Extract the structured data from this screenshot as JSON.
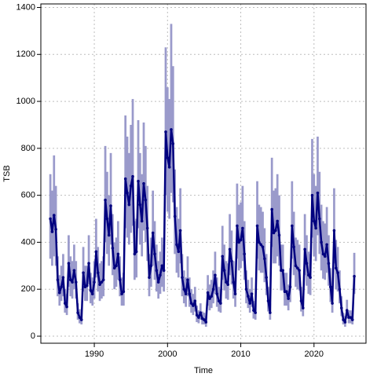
{
  "chart_data": {
    "type": "line",
    "xlabel": "Time",
    "ylabel": "TSB",
    "color": "#00007f",
    "band_color": "#9a9acb",
    "grid": true,
    "xlim": [
      1982.7,
      2027.1
    ],
    "ylim": [
      -30,
      1415
    ],
    "xticks": [
      1990,
      2000,
      2010,
      2020
    ],
    "yticks": [
      0,
      200,
      400,
      600,
      800,
      1000,
      1200,
      1400
    ],
    "x": [
      1984,
      1984.25,
      1984.5,
      1984.75,
      1985,
      1985.25,
      1985.5,
      1985.75,
      1986,
      1986.25,
      1986.5,
      1986.75,
      1987,
      1987.25,
      1987.5,
      1987.75,
      1988,
      1988.25,
      1988.5,
      1988.75,
      1989,
      1989.25,
      1989.5,
      1989.75,
      1990,
      1990.25,
      1990.5,
      1990.75,
      1991,
      1991.25,
      1991.5,
      1991.75,
      1992,
      1992.25,
      1992.5,
      1992.75,
      1993,
      1993.25,
      1993.5,
      1993.75,
      1994,
      1994.25,
      1994.5,
      1994.75,
      1995,
      1995.25,
      1995.5,
      1995.75,
      1996,
      1996.25,
      1996.5,
      1996.75,
      1997,
      1997.25,
      1997.5,
      1997.75,
      1998,
      1998.25,
      1998.5,
      1998.75,
      1999,
      1999.25,
      1999.5,
      1999.75,
      2000,
      2000.25,
      2000.5,
      2000.75,
      2001,
      2001.25,
      2001.5,
      2001.75,
      2002,
      2002.25,
      2002.5,
      2002.75,
      2003,
      2003.25,
      2003.5,
      2003.75,
      2004,
      2004.25,
      2004.5,
      2004.75,
      2005,
      2005.25,
      2005.5,
      2005.75,
      2006,
      2006.25,
      2006.5,
      2006.75,
      2007,
      2007.25,
      2007.5,
      2007.75,
      2008,
      2008.25,
      2008.5,
      2008.75,
      2009,
      2009.25,
      2009.5,
      2009.75,
      2010,
      2010.25,
      2010.5,
      2010.75,
      2011,
      2011.25,
      2011.5,
      2011.75,
      2012,
      2012.25,
      2012.5,
      2012.75,
      2013,
      2013.25,
      2013.5,
      2013.75,
      2014,
      2014.25,
      2014.5,
      2014.75,
      2015,
      2015.25,
      2015.5,
      2015.75,
      2016,
      2016.25,
      2016.5,
      2016.75,
      2017,
      2017.25,
      2017.5,
      2017.75,
      2018,
      2018.25,
      2018.5,
      2018.75,
      2019,
      2019.25,
      2019.5,
      2019.75,
      2020,
      2020.25,
      2020.5,
      2020.75,
      2021,
      2021.25,
      2021.5,
      2021.75,
      2022,
      2022.25,
      2022.5,
      2022.75,
      2023,
      2023.25,
      2023.5,
      2023.75,
      2024,
      2024.25,
      2024.5,
      2024.75,
      2025,
      2025.25,
      2025.5
    ],
    "values": [
      500,
      445,
      515,
      455,
      240,
      185,
      210,
      250,
      140,
      125,
      310,
      240,
      230,
      280,
      230,
      100,
      80,
      70,
      270,
      210,
      215,
      310,
      195,
      180,
      230,
      360,
      270,
      220,
      230,
      240,
      580,
      500,
      430,
      555,
      375,
      290,
      300,
      350,
      240,
      180,
      190,
      670,
      610,
      560,
      640,
      680,
      350,
      360,
      660,
      560,
      490,
      650,
      580,
      460,
      250,
      300,
      440,
      350,
      280,
      230,
      260,
      300,
      280,
      870,
      760,
      720,
      880,
      820,
      510,
      390,
      360,
      450,
      250,
      200,
      180,
      240,
      180,
      140,
      130,
      150,
      90,
      80,
      100,
      75,
      70,
      60,
      185,
      160,
      170,
      200,
      260,
      180,
      150,
      140,
      340,
      280,
      230,
      220,
      370,
      320,
      230,
      180,
      470,
      400,
      410,
      460,
      350,
      200,
      170,
      140,
      180,
      110,
      100,
      470,
      400,
      390,
      380,
      330,
      250,
      150,
      100,
      540,
      440,
      450,
      490,
      430,
      280,
      280,
      190,
      190,
      160,
      210,
      470,
      380,
      300,
      290,
      280,
      150,
      120,
      370,
      310,
      260,
      250,
      600,
      490,
      460,
      610,
      500,
      400,
      350,
      340,
      390,
      310,
      210,
      140,
      450,
      290,
      270,
      200,
      120,
      70,
      60,
      110,
      80,
      80,
      70,
      255
    ],
    "lower": [
      330,
      300,
      340,
      300,
      170,
      130,
      150,
      170,
      100,
      90,
      210,
      170,
      160,
      200,
      160,
      70,
      55,
      50,
      190,
      150,
      150,
      220,
      140,
      130,
      160,
      250,
      190,
      150,
      160,
      170,
      400,
      350,
      300,
      390,
      260,
      200,
      210,
      240,
      170,
      130,
      130,
      460,
      420,
      390,
      440,
      470,
      240,
      250,
      460,
      390,
      340,
      450,
      400,
      320,
      170,
      210,
      300,
      240,
      190,
      160,
      180,
      210,
      190,
      600,
      530,
      500,
      610,
      570,
      350,
      270,
      250,
      310,
      170,
      140,
      125,
      170,
      125,
      100,
      90,
      105,
      60,
      55,
      70,
      50,
      50,
      40,
      130,
      110,
      120,
      140,
      180,
      125,
      105,
      100,
      240,
      195,
      160,
      155,
      260,
      220,
      160,
      125,
      330,
      280,
      290,
      320,
      240,
      140,
      120,
      100,
      125,
      75,
      70,
      330,
      280,
      270,
      270,
      230,
      175,
      105,
      70,
      380,
      310,
      310,
      340,
      300,
      195,
      195,
      130,
      130,
      110,
      145,
      330,
      260,
      210,
      200,
      195,
      105,
      85,
      260,
      215,
      180,
      175,
      420,
      340,
      320,
      430,
      350,
      280,
      245,
      240,
      270,
      215,
      145,
      100,
      310,
      200,
      190,
      140,
      85,
      50,
      40,
      75,
      55,
      55,
      50,
      180
    ],
    "upper": [
      690,
      620,
      770,
      640,
      340,
      260,
      300,
      350,
      200,
      180,
      430,
      340,
      320,
      390,
      320,
      140,
      115,
      100,
      380,
      300,
      300,
      430,
      270,
      250,
      320,
      500,
      380,
      310,
      320,
      340,
      810,
      700,
      600,
      780,
      520,
      400,
      420,
      490,
      340,
      250,
      270,
      940,
      850,
      780,
      900,
      1010,
      490,
      500,
      920,
      780,
      690,
      910,
      810,
      640,
      350,
      420,
      620,
      490,
      390,
      320,
      360,
      420,
      390,
      1230,
      1060,
      1010,
      1330,
      1150,
      710,
      550,
      500,
      630,
      350,
      280,
      250,
      340,
      250,
      200,
      180,
      210,
      130,
      110,
      140,
      105,
      100,
      85,
      260,
      220,
      240,
      280,
      360,
      250,
      210,
      200,
      470,
      390,
      320,
      310,
      520,
      450,
      320,
      250,
      650,
      560,
      570,
      640,
      490,
      280,
      240,
      200,
      250,
      150,
      140,
      660,
      560,
      550,
      530,
      460,
      350,
      210,
      140,
      760,
      620,
      630,
      690,
      600,
      390,
      390,
      270,
      270,
      220,
      290,
      660,
      530,
      420,
      410,
      390,
      210,
      170,
      520,
      430,
      360,
      350,
      840,
      690,
      640,
      850,
      700,
      560,
      490,
      480,
      550,
      430,
      290,
      200,
      630,
      410,
      380,
      280,
      170,
      100,
      85,
      155,
      110,
      110,
      100,
      355
    ]
  }
}
